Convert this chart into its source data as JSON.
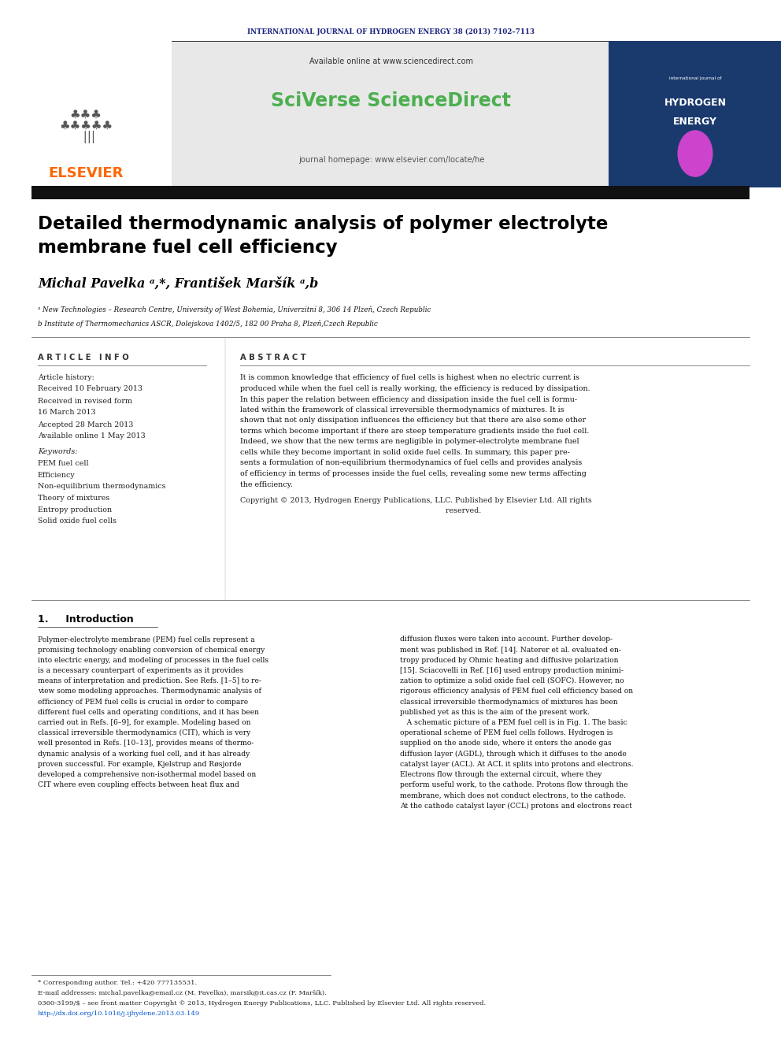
{
  "page_width": 9.92,
  "page_height": 13.23,
  "bg_color": "#ffffff",
  "journal_header": "INTERNATIONAL JOURNAL OF HYDROGEN ENERGY 38 (2013) 7102–7113",
  "journal_header_color": "#1a237e",
  "available_online_text": "Available online at www.sciencedirect.com",
  "sciverse_text": "SciVerse ScienceDirect",
  "sciverse_color": "#4caf50",
  "journal_homepage_text": "journal homepage: www.elsevier.com/locate/he",
  "header_bg_color": "#e8e8e8",
  "title_line1": "Detailed thermodynamic analysis of polymer electrolyte",
  "title_line2": "membrane fuel cell efficiency",
  "title_color": "#000000",
  "authors": "Michal Pavelka ᵃ,*, František Maršík ᵃ,b",
  "affil_a": "ᵃ New Technologies – Research Centre, University of West Bohemia, Univerzitní 8, 306 14 Plzeň, Czech Republic",
  "affil_b": "b Institute of Thermomechanics ASCR, Dolejskova 1402/5, 182 00 Praha 8, Plzeň,Czech Republic",
  "article_info_header": "A R T I C L E   I N F O",
  "abstract_header": "A B S T R A C T",
  "article_history_label": "Article history:",
  "received1": "Received 10 February 2013",
  "received2": "Received in revised form",
  "received2b": "16 March 2013",
  "accepted": "Accepted 28 March 2013",
  "available_online": "Available online 1 May 2013",
  "keywords_label": "Keywords:",
  "keyword1": "PEM fuel cell",
  "keyword2": "Efficiency",
  "keyword3": "Non-equilibrium thermodynamics",
  "keyword4": "Theory of mixtures",
  "keyword5": "Entropy production",
  "keyword6": "Solid oxide fuel cells",
  "abstract_text": "It is common knowledge that efficiency of fuel cells is highest when no electric current is\nproduced while when the fuel cell is really working, the efficiency is reduced by dissipation.\nIn this paper the relation between efficiency and dissipation inside the fuel cell is formu-\nlated within the framework of classical irreversible thermodynamics of mixtures. It is\nshown that not only dissipation influences the efficiency but that there are also some other\nterms which become important if there are steep temperature gradients inside the fuel cell.\nIndeed, we show that the new terms are negligible in polymer-electrolyte membrane fuel\ncells while they become important in solid oxide fuel cells. In summary, this paper pre-\nsents a formulation of non-equilibrium thermodynamics of fuel cells and provides analysis\nof efficiency in terms of processes inside the fuel cells, revealing some new terms affecting\nthe efficiency.",
  "copyright_text": "Copyright © 2013, Hydrogen Energy Publications, LLC. Published by Elsevier Ltd. All rights\n                                                                                       reserved.",
  "intro_header": "1.     Introduction",
  "intro_col1_lines": [
    "Polymer-electrolyte membrane (PEM) fuel cells represent a",
    "promising technology enabling conversion of chemical energy",
    "into electric energy, and modeling of processes in the fuel cells",
    "is a necessary counterpart of experiments as it provides",
    "means of interpretation and prediction. See Refs. [1–5] to re-",
    "view some modeling approaches. Thermodynamic analysis of",
    "efficiency of PEM fuel cells is crucial in order to compare",
    "different fuel cells and operating conditions, and it has been",
    "carried out in Refs. [6–9], for example. Modeling based on",
    "classical irreversible thermodynamics (CIT), which is very",
    "well presented in Refs. [10–13], provides means of thermo-",
    "dynamic analysis of a working fuel cell, and it has already",
    "proven successful. For example, Kjelstrup and Røsjorde",
    "developed a comprehensive non-isothermal model based on",
    "CIT where even coupling effects between heat flux and"
  ],
  "intro_col2_lines": [
    "diffusion fluxes were taken into account. Further develop-",
    "ment was published in Ref. [14]. Naterer et al. evaluated en-",
    "tropy produced by Ohmic heating and diffusive polarization",
    "[15]. Sciacovelli in Ref. [16] used entropy production minimi-",
    "zation to optimize a solid oxide fuel cell (SOFC). However, no",
    "rigorous efficiency analysis of PEM fuel cell efficiency based on",
    "classical irreversible thermodynamics of mixtures has been",
    "published yet as this is the aim of the present work.",
    "   A schematic picture of a PEM fuel cell is in Fig. 1. The basic",
    "operational scheme of PEM fuel cells follows. Hydrogen is",
    "supplied on the anode side, where it enters the anode gas",
    "diffusion layer (AGDL), through which it diffuses to the anode",
    "catalyst layer (ACL). At ACL it splits into protons and electrons.",
    "Electrons flow through the external circuit, where they",
    "perform useful work, to the cathode. Protons flow through the",
    "membrane, which does not conduct electrons, to the cathode.",
    "At the cathode catalyst layer (CCL) protons and electrons react"
  ],
  "footnote_star": "* Corresponding author. Tel.: +420 777135531.",
  "footnote_email": "E-mail addresses: michal.pavelka@email.cz (M. Pavelka), marsik@it.cas.cz (F. Maršík).",
  "footnote_issn": "0360-3199/$ – see front matter Copyright © 2013, Hydrogen Energy Publications, LLC. Published by Elsevier Ltd. All rights reserved.",
  "footnote_doi": "http://dx.doi.org/10.1016/j.ijhydene.2013.03.149",
  "elsevier_color": "#ff6600",
  "dark_navy": "#1a237e",
  "separator_color": "#000000"
}
